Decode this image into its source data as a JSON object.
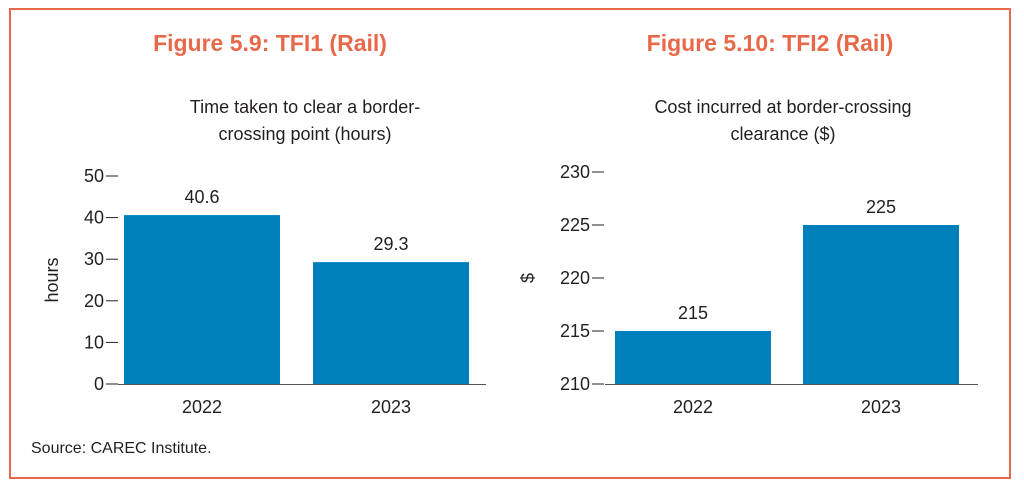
{
  "figures": [
    {
      "title": "Figure 5.9: TFI1 (Rail)",
      "subtitle": "Time taken to clear a border-crossing point (hours)"
    },
    {
      "title": "Figure 5.10: TFI2 (Rail)",
      "subtitle": "Cost incurred at border-crossing clearance ($)"
    }
  ],
  "source": "Source: CAREC Institute.",
  "colors": {
    "bar": "#0080bb",
    "accent": "#e8694a"
  },
  "chart_data": [
    {
      "type": "bar",
      "title": "Time taken to clear a border-crossing point (hours)",
      "categories": [
        "2022",
        "2023"
      ],
      "values": [
        40.6,
        29.3
      ],
      "value_labels": [
        "40.6",
        "29.3"
      ],
      "xlabel": "",
      "ylabel": "hours",
      "ylim": [
        0,
        50
      ],
      "yticks": [
        "0",
        "10",
        "20",
        "30",
        "40",
        "50"
      ],
      "grid": false
    },
    {
      "type": "bar",
      "title": "Cost incurred at border-crossing clearance ($)",
      "categories": [
        "2022",
        "2023"
      ],
      "values": [
        215,
        225
      ],
      "value_labels": [
        "215",
        "225"
      ],
      "xlabel": "",
      "ylabel": "$",
      "ylim": [
        210,
        230
      ],
      "yticks": [
        "210",
        "215",
        "220",
        "225",
        "230"
      ],
      "grid": false
    }
  ]
}
